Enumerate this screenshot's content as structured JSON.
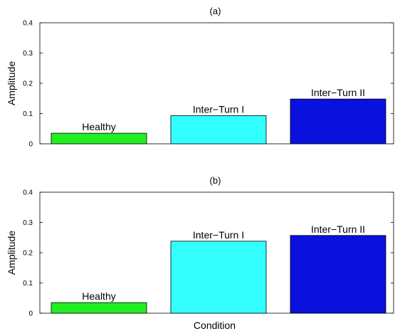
{
  "chart_data": [
    {
      "type": "bar",
      "title": "(a)",
      "xlabel": "",
      "ylabel": "Amplitude",
      "ylim": [
        0,
        0.4
      ],
      "yticks": [
        "0",
        "0.1",
        "0.2",
        "0.3",
        "0.4"
      ],
      "categories": [
        "Healthy",
        "Inter−Turn I",
        "Inter−Turn II"
      ],
      "values": [
        0.035,
        0.093,
        0.148
      ],
      "colors": [
        "#22ee22",
        "#33ffff",
        "#0a10dd"
      ],
      "grid": false,
      "legend": "none"
    },
    {
      "type": "bar",
      "title": "(b)",
      "xlabel": "Condition",
      "ylabel": "Amplitude",
      "ylim": [
        0,
        0.4
      ],
      "yticks": [
        "0",
        "0.1",
        "0.2",
        "0.3",
        "0.4"
      ],
      "categories": [
        "Healthy",
        "Inter−Turn I",
        "Inter−Turn II"
      ],
      "values": [
        0.035,
        0.238,
        0.257
      ],
      "colors": [
        "#22ee22",
        "#33ffff",
        "#0a10dd"
      ],
      "grid": false,
      "legend": "none"
    }
  ]
}
